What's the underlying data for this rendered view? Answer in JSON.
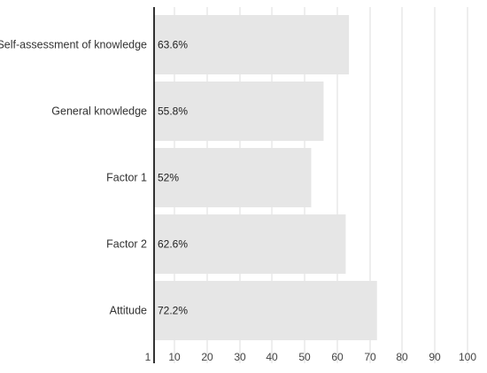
{
  "chart_data": {
    "type": "bar",
    "orientation": "horizontal",
    "categories": [
      "Self-assessment of knowledge",
      "General knowledge",
      "Factor 1",
      "Factor 2",
      "Attitude"
    ],
    "values": [
      63.6,
      55.8,
      52,
      62.6,
      72.2
    ],
    "value_labels": [
      "63.6%",
      "55.8%",
      "52%",
      "62.6%",
      "72.2%"
    ],
    "x_ticks": [
      1,
      10,
      20,
      30,
      40,
      50,
      60,
      70,
      80,
      90,
      100
    ],
    "x_tick_labels": [
      "1",
      "10",
      "20",
      "30",
      "40",
      "50",
      "60",
      "70",
      "80",
      "90",
      "100"
    ],
    "xlim": [
      1,
      100
    ],
    "title": "",
    "xlabel": "",
    "ylabel": "",
    "grid": "vertical",
    "legend": "none",
    "colors": {
      "bar": "#e6e6e6",
      "grid": "#dddddd",
      "axis": "#000000",
      "label": "#333333"
    }
  }
}
